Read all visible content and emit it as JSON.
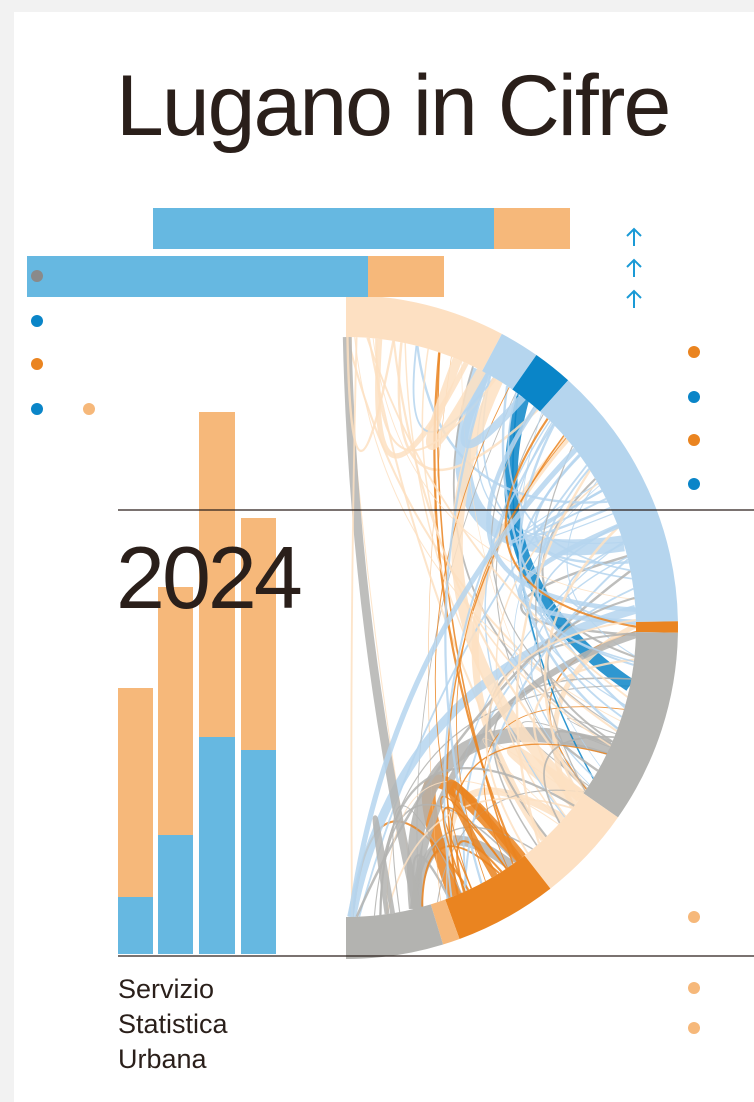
{
  "cover": {
    "title": "Lugano in Cifre",
    "year": "2024",
    "publisher": [
      "Servizio",
      "Statistica",
      "Urbana"
    ]
  }
}
